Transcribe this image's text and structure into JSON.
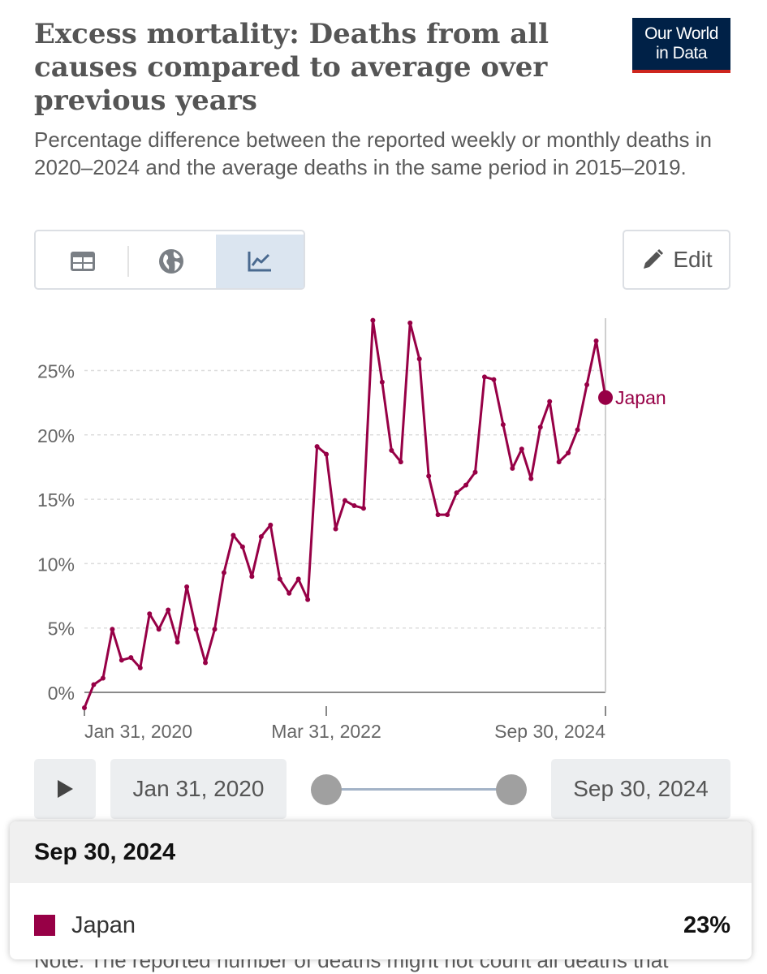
{
  "header": {
    "title": "Excess mortality: Deaths from all causes compared to average over previous years",
    "subtitle": "Percentage difference between the reported weekly or monthly deaths in 2020–2024 and the average deaths in the same period in 2015–2019.",
    "logo_line1": "Our World",
    "logo_line2": "in Data"
  },
  "toolbar": {
    "tabs": [
      {
        "name": "table",
        "icon": "table-icon",
        "active": false
      },
      {
        "name": "map",
        "icon": "globe-icon",
        "active": false
      },
      {
        "name": "chart",
        "icon": "line-chart-icon",
        "active": true
      }
    ],
    "edit_label": "Edit"
  },
  "colors": {
    "series": "#970046",
    "accent_bg": "#dbe5f0",
    "logo_bg": "#002147",
    "logo_bar": "#ce261e"
  },
  "chart_data": {
    "type": "line",
    "title": "",
    "xlabel": "",
    "ylabel": "",
    "x_start": "Jan 31, 2020",
    "x_end": "Sep 30, 2024",
    "x_ticks": [
      "Jan 31, 2020",
      "Mar 31, 2022",
      "Sep 30, 2024"
    ],
    "y_ticks": [
      "0%",
      "5%",
      "10%",
      "15%",
      "20%",
      "25%"
    ],
    "ylim": [
      -1.5,
      29.5
    ],
    "grid": "horizontal dashed",
    "series": [
      {
        "name": "Japan",
        "color": "#970046",
        "end_label": "Japan",
        "values": [
          -1.2,
          0.6,
          1.1,
          4.9,
          2.5,
          2.7,
          1.9,
          6.1,
          4.9,
          6.4,
          3.9,
          8.2,
          4.9,
          2.3,
          4.9,
          9.3,
          12.2,
          11.3,
          9.0,
          12.1,
          13.0,
          8.8,
          7.7,
          8.8,
          7.2,
          19.1,
          18.5,
          12.7,
          14.9,
          14.5,
          14.3,
          28.9,
          24.1,
          18.8,
          17.9,
          28.7,
          25.9,
          16.8,
          13.8,
          13.8,
          15.5,
          16.1,
          17.1,
          24.5,
          24.3,
          20.8,
          17.4,
          18.9,
          16.6,
          20.6,
          22.6,
          17.9,
          18.6,
          20.4,
          23.9,
          27.3,
          22.9
        ]
      }
    ]
  },
  "timeline": {
    "play_icon": "play-icon",
    "start_label": "Jan 31, 2020",
    "end_label": "Sep 30, 2024"
  },
  "tooltip": {
    "date": "Sep 30, 2024",
    "series_name": "Japan",
    "value": "23%"
  },
  "footer": {
    "note": "Note: The reported number of deaths might not count all deaths that"
  }
}
